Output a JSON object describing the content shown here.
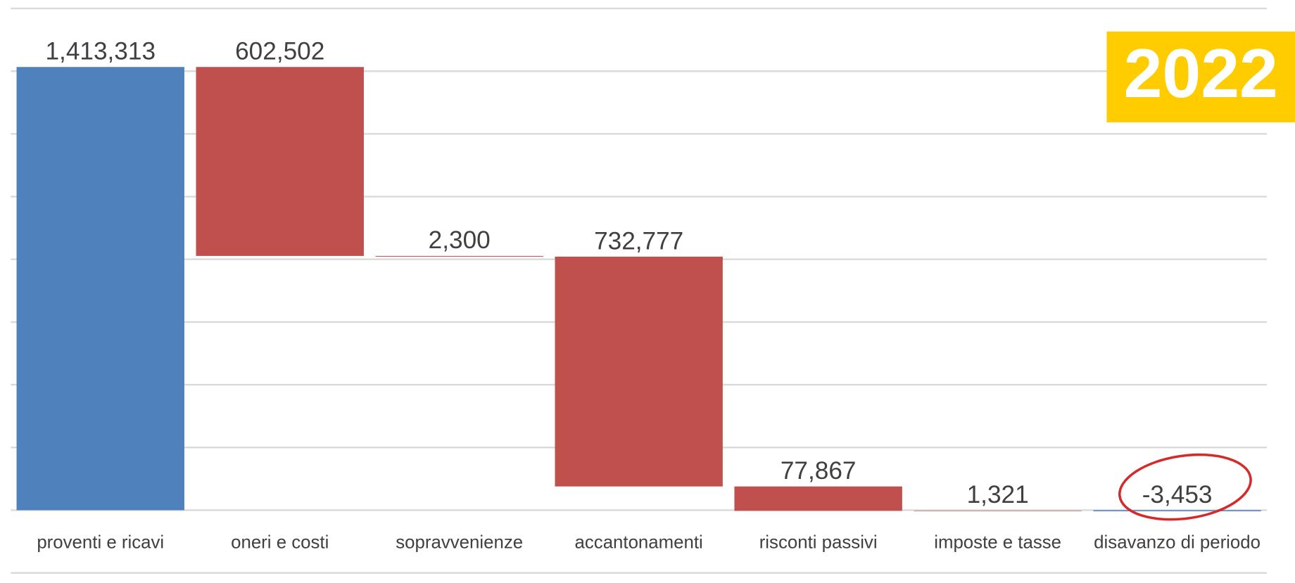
{
  "chart_data": {
    "type": "waterfall",
    "categories": [
      "proventi e ricavi",
      "oneri e costi",
      "sopravvenienze",
      "accantonamenti",
      "risconti passivi",
      "imposte e tasse",
      "disavanzo di periodo"
    ],
    "values": [
      1413313,
      -602502,
      -2300,
      -732777,
      -77867,
      -1321,
      -3453
    ],
    "value_labels": [
      "1,413,313",
      "602,502",
      "2,300",
      "732,777",
      "77,867",
      "1,321",
      "-3,453"
    ],
    "measures": [
      "total",
      "relative",
      "relative",
      "relative",
      "relative",
      "relative",
      "total"
    ],
    "colors": {
      "total": "#4f81bd",
      "relative": "#c0504d"
    },
    "ylim": [
      -200000,
      1600000
    ],
    "yticks": [
      -200000,
      0,
      200000,
      400000,
      600000,
      800000,
      1000000,
      1200000,
      1400000,
      1600000
    ],
    "grid": true,
    "annotations": [
      "2022"
    ]
  }
}
